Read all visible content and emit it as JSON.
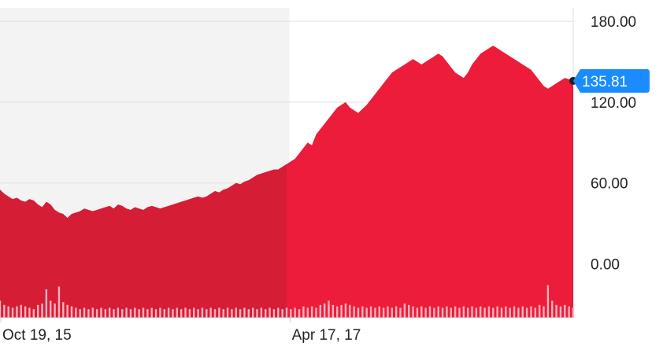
{
  "chart_data": {
    "type": "area",
    "title": "",
    "xlabel": "",
    "ylabel": "",
    "ylim": [
      -40,
      190
    ],
    "y_ticks": [
      "180.00",
      "120.00",
      "60.00",
      "0.00"
    ],
    "y_tick_values": [
      180,
      120,
      60,
      0
    ],
    "x_tick_labels": [
      "Oct 19, 15",
      "Apr 17, 17"
    ],
    "last_value_label": "135.81",
    "last_value": 135.81,
    "grid": true,
    "series": [
      {
        "values": [
          55,
          52,
          50,
          48,
          49,
          47,
          46,
          48,
          47,
          44,
          42,
          46,
          44,
          40,
          38,
          37,
          34,
          37,
          38,
          39,
          41,
          40,
          39,
          40,
          41,
          42,
          43,
          41,
          44,
          43,
          41,
          40,
          42,
          41,
          40,
          42,
          43,
          42,
          41,
          42,
          43,
          44,
          45,
          46,
          47,
          48,
          49,
          50,
          49,
          50,
          52,
          54,
          53,
          55,
          56,
          58,
          60,
          59,
          61,
          62,
          64,
          66,
          67,
          68,
          69,
          70,
          70,
          72,
          74,
          76,
          78,
          82,
          86,
          90,
          88,
          96,
          100,
          104,
          108,
          112,
          116,
          118,
          120,
          116,
          114,
          112,
          115,
          118,
          122,
          126,
          130,
          134,
          138,
          142,
          144,
          146,
          148,
          150,
          152,
          150,
          148,
          150,
          152,
          154,
          156,
          154,
          150,
          146,
          142,
          140,
          138,
          142,
          148,
          152,
          156,
          158,
          160,
          162,
          160,
          158,
          156,
          154,
          152,
          150,
          148,
          146,
          144,
          140,
          136,
          132,
          130,
          132,
          134,
          136,
          138,
          137,
          136
        ],
        "volume": [
          12,
          9,
          8,
          7,
          8,
          9,
          8,
          7,
          6,
          9,
          10,
          20,
          12,
          10,
          22,
          11,
          9,
          8,
          7,
          6,
          7,
          6,
          7,
          6,
          7,
          6,
          7,
          6,
          7,
          6,
          7,
          6,
          7,
          6,
          7,
          6,
          7,
          6,
          7,
          6,
          7,
          6,
          7,
          6,
          7,
          6,
          7,
          6,
          7,
          6,
          7,
          6,
          7,
          6,
          7,
          6,
          7,
          6,
          7,
          6,
          7,
          6,
          7,
          6,
          7,
          6,
          7,
          6,
          7,
          6,
          7,
          6,
          8,
          7,
          8,
          7,
          9,
          10,
          12,
          9,
          8,
          9,
          10,
          9,
          8,
          7,
          8,
          7,
          8,
          7,
          8,
          7,
          8,
          7,
          8,
          7,
          10,
          9,
          8,
          7,
          8,
          7,
          8,
          7,
          8,
          7,
          8,
          7,
          8,
          7,
          8,
          7,
          8,
          7,
          8,
          7,
          8,
          7,
          8,
          7,
          8,
          7,
          8,
          7,
          8,
          7,
          8,
          7,
          9,
          8,
          23,
          12,
          9,
          8,
          9,
          8,
          7
        ]
      }
    ],
    "highlight_range_fraction": [
      0,
      0.505
    ],
    "colors": {
      "area": "#ec1c3a",
      "area_shaded": "#d61d36",
      "shade_bg": "#f3f3f3",
      "grid": "#e0e0e0",
      "volume": "#ffb3bd",
      "badge": "#1a8cff",
      "dot": "#222222"
    }
  }
}
